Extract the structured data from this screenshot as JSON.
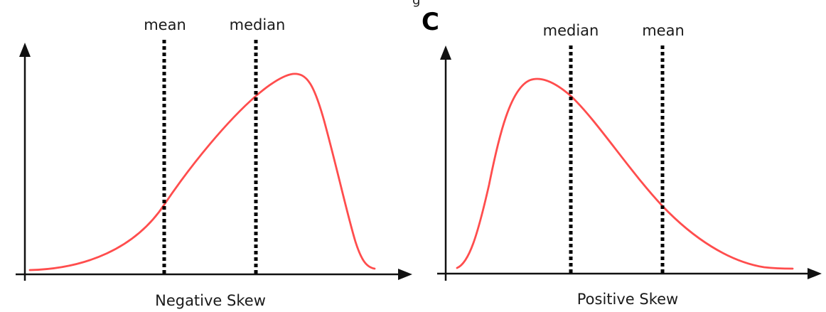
{
  "top_fragment": "g",
  "colors": {
    "curve": "#ff4d4d",
    "axis": "#111111",
    "marker_line": "#000000"
  },
  "panels": [
    {
      "id": "negative",
      "panel_letter": "",
      "caption": "Negative Skew",
      "markers": [
        {
          "label": "mean"
        },
        {
          "label": "median"
        }
      ]
    },
    {
      "id": "positive",
      "panel_letter": "C",
      "caption": "Positive Skew",
      "markers": [
        {
          "label": "median"
        },
        {
          "label": "mean"
        }
      ]
    }
  ]
}
